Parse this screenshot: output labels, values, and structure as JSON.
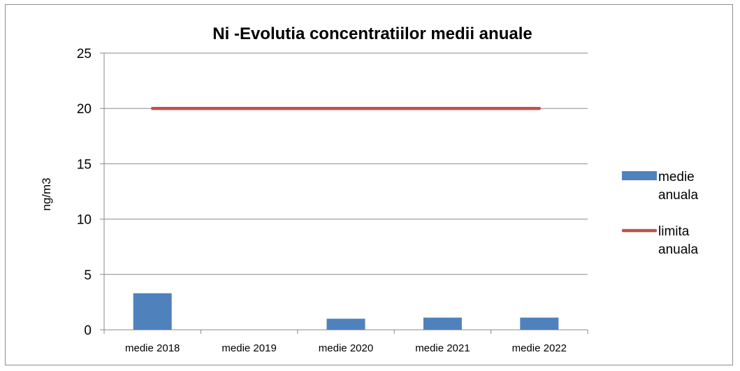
{
  "chart_data": {
    "type": "bar",
    "title": "Ni -Evolutia concentratiilor medii anuale",
    "xlabel": "",
    "ylabel": "ng/m3",
    "categories": [
      "medie 2018",
      "medie 2019",
      "medie 2020",
      "medie 2021",
      "medie 2022"
    ],
    "ylim": [
      0,
      25
    ],
    "yticks": [
      "0",
      "5",
      "10",
      "15",
      "20",
      "25"
    ],
    "grid": true,
    "legend_position": "right",
    "series": [
      {
        "name_lines": [
          "medie",
          "anuala"
        ],
        "type": "bar",
        "color": "#4f81bd",
        "values": [
          3.3,
          0,
          1.0,
          1.1,
          1.1
        ]
      },
      {
        "name_lines": [
          "limita",
          "anuala"
        ],
        "type": "line",
        "color": "#c0504d",
        "values": [
          20,
          20,
          20,
          20,
          20
        ]
      }
    ]
  }
}
